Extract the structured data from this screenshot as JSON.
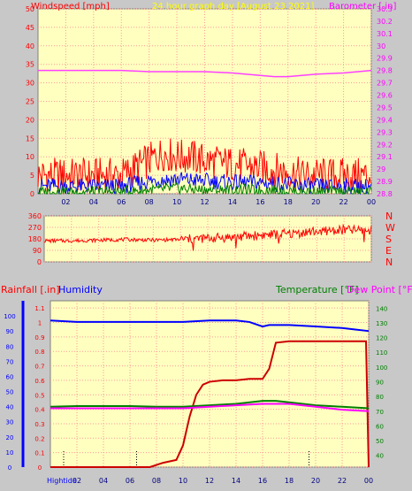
{
  "chart_data": [
    {
      "type": "line",
      "panel": "wind-barometer",
      "title": "24 hour graph day  [August 23 2021]",
      "left_axis": {
        "label": "Windspeed [mph]",
        "ticks": [
          0,
          5,
          10,
          15,
          20,
          25,
          30,
          35,
          40,
          45,
          50
        ],
        "range": [
          0,
          50
        ]
      },
      "right_axis": {
        "label": "Barometer [.in]",
        "ticks": [
          "28.8",
          "28.9",
          "29",
          "29.1",
          "29.2",
          "29.3",
          "29.4",
          "29.5",
          "29.6",
          "29.7",
          "29.8",
          "29.9",
          "30",
          "30.1",
          "30.2",
          "30.3"
        ],
        "range": [
          28.8,
          30.3
        ]
      },
      "x_ticks": [
        "02",
        "04",
        "06",
        "08",
        "10",
        "12",
        "14",
        "16",
        "18",
        "20",
        "22",
        "00"
      ],
      "series": [
        {
          "role": "barometer",
          "color": "#ff40ff",
          "x": [
            0,
            2,
            4,
            6,
            8,
            10,
            12,
            14,
            15,
            16,
            17,
            18,
            19,
            20,
            22,
            24
          ],
          "y": [
            29.8,
            29.8,
            29.8,
            29.8,
            29.79,
            29.79,
            29.79,
            29.78,
            29.77,
            29.76,
            29.75,
            29.75,
            29.76,
            29.77,
            29.78,
            29.8
          ]
        },
        {
          "role": "gust",
          "color": "#ff0000",
          "x": [
            0,
            2,
            4,
            6,
            8,
            9,
            10,
            11,
            12,
            14,
            16,
            18,
            19,
            20,
            22,
            24
          ],
          "y": [
            5,
            5,
            5,
            5,
            9,
            11,
            10,
            10,
            9,
            8,
            7,
            6,
            5,
            5,
            5,
            5
          ]
        },
        {
          "role": "windspeed",
          "color": "#0000ff",
          "x": [
            0,
            2,
            4,
            6,
            8,
            10,
            12,
            14,
            16,
            18,
            20,
            22,
            24
          ],
          "y": [
            2,
            2,
            2,
            2,
            3.5,
            4,
            3.5,
            3,
            3,
            2.5,
            2,
            2,
            2
          ]
        },
        {
          "role": "lull",
          "color": "#008000",
          "x": [
            0,
            2,
            4,
            6,
            8,
            10,
            12,
            14,
            16,
            18,
            20,
            22,
            24
          ],
          "y": [
            0.5,
            0.5,
            0.5,
            0.5,
            1,
            1.5,
            1,
            1,
            1,
            0.8,
            0.5,
            0.5,
            0.5
          ]
        }
      ]
    },
    {
      "type": "scatter",
      "panel": "wind-direction",
      "left_ticks": [
        "360",
        "270",
        "180",
        "90",
        "0"
      ],
      "right_labels": [
        "N",
        "W",
        "S",
        "E",
        "N"
      ],
      "range": [
        0,
        360
      ],
      "series": [
        {
          "role": "direction",
          "color": "#ff0000",
          "x": [
            0,
            2,
            4,
            6,
            8,
            10,
            12,
            14,
            16,
            18,
            20,
            22,
            24
          ],
          "y": [
            165,
            165,
            170,
            175,
            170,
            175,
            185,
            195,
            210,
            220,
            240,
            250,
            245
          ]
        }
      ]
    },
    {
      "type": "line",
      "panel": "rain-humidity-temp",
      "labels": {
        "rainfall": "Rainfall [.in]",
        "humidity": "Humidity",
        "temperature": "Temperature [°F]",
        "dewpoint": "Dew Point [°F]"
      },
      "humidity_ticks": [
        "0",
        "10",
        "20",
        "30",
        "40",
        "50",
        "60",
        "70",
        "80",
        "90",
        "100"
      ],
      "rain_ticks": [
        "0",
        "0.1",
        "0.2",
        "0.3",
        "0.4",
        "0.5",
        "0.6",
        "0.7",
        "0.8",
        "0.9",
        "1",
        "1.1"
      ],
      "temp_ticks": [
        "40",
        "50",
        "60",
        "70",
        "80",
        "90",
        "100",
        "110",
        "120",
        "130",
        "140"
      ],
      "x_ticks": [
        "02",
        "04",
        "06",
        "08",
        "10",
        "12",
        "14",
        "16",
        "18",
        "20",
        "22",
        "00"
      ],
      "high_tide_label": "Hightide",
      "high_tide_x": [
        1.0,
        6.5,
        19.5
      ],
      "series": [
        {
          "role": "humidity",
          "color": "#0000ff",
          "x": [
            0,
            2,
            4,
            6,
            8,
            10,
            12,
            14,
            15,
            16,
            16.5,
            17,
            18,
            20,
            22,
            23,
            24
          ],
          "y": [
            97,
            96,
            96,
            96,
            96,
            96,
            97,
            97,
            96,
            93,
            94,
            94,
            94,
            93,
            92,
            91,
            90
          ]
        },
        {
          "role": "rainfall",
          "color": "#cc0000",
          "x": [
            0,
            7.5,
            8.5,
            9.5,
            10,
            10.5,
            11,
            11.5,
            12,
            13,
            14,
            15,
            16,
            16.5,
            17,
            18,
            20,
            22,
            23.8,
            24
          ],
          "y": [
            0,
            0,
            0.03,
            0.05,
            0.15,
            0.35,
            0.5,
            0.57,
            0.59,
            0.6,
            0.6,
            0.61,
            0.61,
            0.68,
            0.86,
            0.87,
            0.87,
            0.87,
            0.87,
            0
          ]
        },
        {
          "role": "temperature",
          "color": "#008000",
          "x": [
            0,
            2,
            4,
            6,
            8,
            10,
            12,
            14,
            16,
            17,
            18,
            20,
            22,
            24
          ],
          "y": [
            73,
            73.5,
            73.5,
            73.5,
            73,
            73,
            74,
            75,
            77,
            77,
            76,
            74,
            73,
            72
          ]
        },
        {
          "role": "dewpoint",
          "color": "#ff00ff",
          "x": [
            0,
            2,
            4,
            6,
            8,
            10,
            12,
            14,
            16,
            17,
            18,
            20,
            22,
            24
          ],
          "y": [
            72,
            72,
            72,
            72,
            72,
            72,
            73,
            74,
            75,
            75,
            75,
            73,
            71,
            70
          ]
        }
      ]
    }
  ]
}
